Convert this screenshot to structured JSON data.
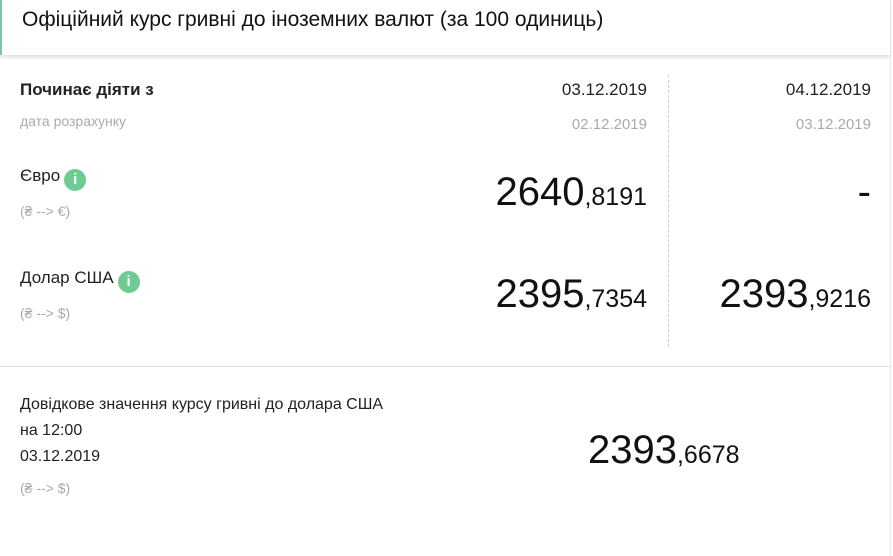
{
  "header": {
    "title": "Офіційний курс гривні до іноземних валют (за 100 одиниць)"
  },
  "table": {
    "effective_label": "Починає діяти з",
    "calc_label": "дата розрахунку",
    "columns": [
      {
        "effective": "03.12.2019",
        "calc": "02.12.2019"
      },
      {
        "effective": "04.12.2019",
        "calc": "03.12.2019"
      }
    ],
    "rows": [
      {
        "name": "Євро",
        "direction": "(₴ --> €)",
        "values": [
          {
            "int": "2640",
            "frac": ",8191"
          },
          {
            "int": "-",
            "frac": ""
          }
        ]
      },
      {
        "name": "Долар США",
        "direction": "(₴ --> $)",
        "values": [
          {
            "int": "2395",
            "frac": ",7354"
          },
          {
            "int": "2393",
            "frac": ",9216"
          }
        ]
      }
    ],
    "info_icon": "i"
  },
  "reference": {
    "line1": "Довідкове значення курсу гривні до долара США",
    "line2": "на 12:00",
    "line3": "03.12.2019",
    "direction": "(₴ --> $)",
    "value_int": "2393",
    "value_frac": ",6678"
  },
  "colors": {
    "accent": "#6fcb94"
  }
}
